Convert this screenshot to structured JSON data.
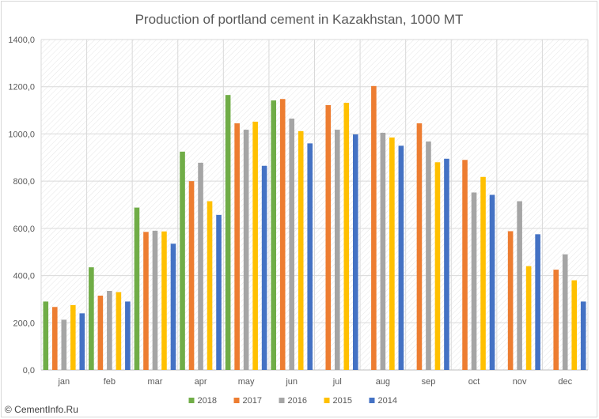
{
  "chart_data": {
    "type": "bar",
    "title": "Production of portland cement in Kazakhstan, 1000 MT",
    "categories": [
      "jan",
      "feb",
      "mar",
      "apr",
      "may",
      "jun",
      "jul",
      "aug",
      "sep",
      "oct",
      "nov",
      "dec"
    ],
    "ylim": [
      0,
      1400
    ],
    "yticks": [
      "0,0",
      "200,0",
      "400,0",
      "600,0",
      "800,0",
      "1000,0",
      "1200,0",
      "1400,0"
    ],
    "ytick_values": [
      0,
      200,
      400,
      600,
      800,
      1000,
      1200,
      1400
    ],
    "grid": true,
    "legend_position": "bottom",
    "series": [
      {
        "name": "2018",
        "color": "#70ad47",
        "values": [
          290,
          435,
          688,
          925,
          1165,
          1142,
          null,
          null,
          null,
          null,
          null,
          null
        ]
      },
      {
        "name": "2017",
        "color": "#ed7d31",
        "values": [
          267,
          315,
          585,
          800,
          1045,
          1148,
          1122,
          1203,
          1045,
          890,
          588,
          425
        ]
      },
      {
        "name": "2016",
        "color": "#a5a5a5",
        "values": [
          213,
          335,
          590,
          878,
          1018,
          1065,
          1018,
          1005,
          968,
          752,
          715,
          490
        ]
      },
      {
        "name": "2015",
        "color": "#ffc000",
        "values": [
          275,
          330,
          587,
          715,
          1052,
          1012,
          1132,
          985,
          880,
          818,
          440,
          380
        ]
      },
      {
        "name": "2014",
        "color": "#4472c4",
        "values": [
          240,
          290,
          535,
          657,
          865,
          960,
          998,
          950,
          895,
          742,
          575,
          290
        ]
      }
    ]
  },
  "credit": "© CementInfo.Ru"
}
